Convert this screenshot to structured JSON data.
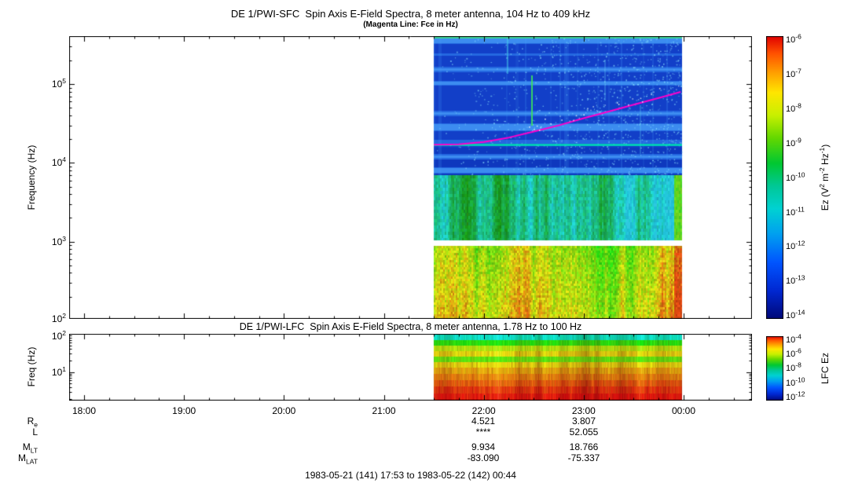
{
  "figure": {
    "footer": "1983-05-21 (141) 17:53 to 1983-05-22 (142) 00:44",
    "time_ticks": [
      "18:00",
      "19:00",
      "20:00",
      "21:00",
      "22:00",
      "23:00",
      "00:00"
    ],
    "ephemeris_rows": [
      {
        "label": "R",
        "sub": "e",
        "val_2200": "4.521",
        "val_2300": "3.807"
      },
      {
        "label": "L",
        "sub": "",
        "val_2200": "****",
        "val_2300": "52.055"
      },
      {
        "label": "M",
        "sub": "LT",
        "val_2200": "9.934",
        "val_2300": "18.766"
      },
      {
        "label": "M",
        "sub": "LAT",
        "val_2200": "-83.090",
        "val_2300": "-75.337"
      }
    ]
  },
  "sfc": {
    "title": "DE 1/PWI-SFC  Spin Axis E-Field Spectra, 8 meter antenna, 104 Hz to 409 kHz",
    "subtitle": "(Magenta Line: Fce in Hz)",
    "ylabel": "Frequency (Hz)",
    "ytick_base": "10",
    "ytick_exponents": [
      "5",
      "4",
      "3",
      "2"
    ],
    "colorbar": {
      "tick_base": "10",
      "tick_exponents": [
        "-6",
        "-7",
        "-8",
        "-9",
        "-10",
        "-11",
        "-12",
        "-13",
        "-14"
      ],
      "label_parts": [
        [
          "Ez (V",
          ""
        ],
        [
          "",
          "2"
        ],
        [
          " m",
          ""
        ],
        [
          "",
          "-2"
        ],
        [
          " Hz",
          ""
        ],
        [
          "",
          "-1"
        ],
        [
          ")",
          ""
        ]
      ]
    }
  },
  "lfc": {
    "title": "DE 1/PWI-LFC  Spin Axis E-Field Spectra, 8 meter antenna, 1.78 Hz to 100 Hz",
    "ylabel": "Freq (Hz)",
    "ytick_base": "10",
    "ytick_exponents": [
      "2",
      "1"
    ],
    "colorbar": {
      "label": "LFC Ez",
      "tick_base": "10",
      "tick_exponents": [
        "-4",
        "-6",
        "-8",
        "-10",
        "-12"
      ]
    }
  },
  "chart_data": [
    {
      "type": "heatmap",
      "panel": "SFC",
      "title": "DE 1/PWI-SFC Spin Axis E-Field Spectra, 8 meter antenna, 104 Hz to 409 kHz",
      "subtitle": "(Magenta Line: Fce in Hz)",
      "ylabel": "Frequency (Hz)",
      "y_scale": "log",
      "y_range_hz": [
        104,
        409000
      ],
      "x_ticks": [
        "18:00",
        "19:00",
        "20:00",
        "21:00",
        "22:00",
        "23:00",
        "00:00"
      ],
      "data_start": "21:30",
      "data_end": "23:59",
      "grid": false,
      "colorbar": {
        "label": "Ez (V^2 m^-2 Hz^-1)",
        "min": "1e-14",
        "max": "1e-6",
        "colormap": "rainbow",
        "ticks": [
          "1e-6",
          "1e-7",
          "1e-8",
          "1e-9",
          "1e-10",
          "1e-11",
          "1e-12",
          "1e-13",
          "1e-14"
        ]
      },
      "overlays": [
        {
          "name": "fce-line",
          "color": "#ff00cc",
          "points_hour_hz": [
            [
              21.5,
              17000
            ],
            [
              21.75,
              17200
            ],
            [
              22.0,
              18500
            ],
            [
              22.25,
              21000
            ],
            [
              22.5,
              25000
            ],
            [
              22.75,
              30000
            ],
            [
              23.0,
              37000
            ],
            [
              23.25,
              45000
            ],
            [
              23.5,
              55000
            ],
            [
              23.75,
              67000
            ],
            [
              23.97,
              80000
            ]
          ]
        },
        {
          "name": "narrowband-emission-line",
          "color": "#00e6b4",
          "freq_hz": 17000
        }
      ],
      "regions": [
        {
          "freq_hz": [
            7000,
            409000
          ],
          "appearance": "blue background ~1e-13 with lighter horizontal banding and scattered cyan bursts"
        },
        {
          "freq_hz": [
            1050,
            7000
          ],
          "appearance": "cyan-green ~1e-12 to 1e-11 with vertical structure"
        },
        {
          "freq_hz": [
            900,
            1050
          ],
          "appearance": "white gap (no data)"
        },
        {
          "freq_hz": [
            104,
            900
          ],
          "appearance": "green-yellow ~1e-11 to 1e-9, orange column at right edge"
        }
      ]
    },
    {
      "type": "heatmap",
      "panel": "LFC",
      "title": "DE 1/PWI-LFC Spin Axis E-Field Spectra, 8 meter antenna, 1.78 Hz to 100 Hz",
      "ylabel": "Freq (Hz)",
      "y_scale": "log",
      "y_range_hz": [
        1.78,
        100
      ],
      "data_start": "21:30",
      "data_end": "23:59",
      "grid": false,
      "colorbar": {
        "label": "LFC Ez",
        "min": "1e-12",
        "max": "1e-4",
        "colormap": "rainbow",
        "ticks": [
          "1e-4",
          "1e-6",
          "1e-8",
          "1e-10",
          "1e-12"
        ]
      },
      "bands_top_to_bottom": [
        "cyan",
        "green",
        "yellow-green",
        "yellow",
        "green",
        "yellow",
        "orange-yellow",
        "orange",
        "orange-red",
        "red"
      ]
    }
  ]
}
